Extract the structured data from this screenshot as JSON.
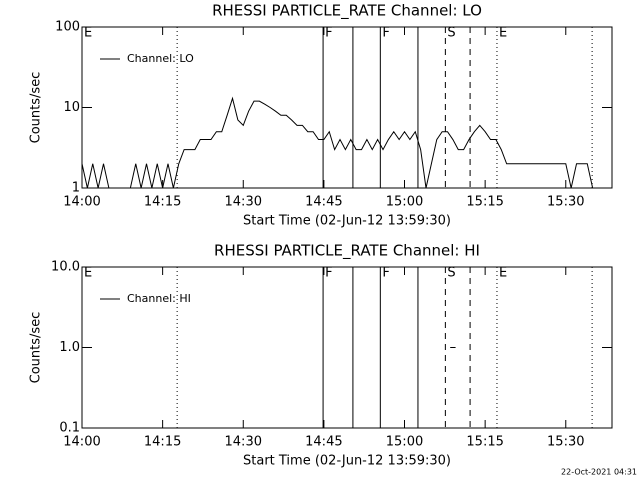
{
  "chart_data": [
    {
      "type": "line",
      "title": "RHESSI PARTICLE_RATE Channel: LO",
      "xlabel": "Start Time (02-Jun-12 13:59:30)",
      "ylabel": "Counts/sec",
      "x": [
        0,
        1,
        2,
        3,
        4,
        5,
        6,
        7,
        8,
        9,
        10,
        11,
        12,
        13,
        14,
        15,
        16,
        17,
        18,
        19,
        20,
        21,
        22,
        23,
        24,
        25,
        26,
        27,
        28,
        29,
        30,
        31,
        32,
        33,
        34,
        35,
        36,
        37,
        38,
        39,
        40,
        41,
        42,
        43,
        44,
        45,
        46,
        47,
        48,
        49,
        50,
        51,
        52,
        53,
        54,
        55,
        56,
        57,
        58,
        59,
        60,
        61,
        62,
        63,
        64,
        65,
        66,
        67,
        68,
        69,
        70,
        71,
        72,
        73,
        74,
        75,
        76,
        77,
        78,
        79,
        80,
        81,
        82,
        83,
        84,
        85,
        86,
        87,
        88,
        89,
        90,
        91,
        92,
        93,
        94,
        95
      ],
      "series": [
        {
          "name": "Channel: LO",
          "color": "#000000",
          "values": [
            2,
            1,
            2,
            1,
            2,
            1,
            1,
            1,
            1,
            1,
            2,
            1,
            2,
            1,
            2,
            1,
            2,
            1,
            2,
            3,
            3,
            3,
            4,
            4,
            4,
            5,
            5,
            8,
            13,
            7,
            6,
            9,
            12,
            12,
            11,
            10,
            9,
            8,
            8,
            7,
            6,
            6,
            5,
            5,
            4,
            4,
            5,
            3,
            4,
            3,
            4,
            3,
            3,
            4,
            3,
            4,
            3,
            4,
            5,
            4,
            5,
            4,
            5,
            3,
            1,
            2,
            4,
            5,
            5,
            4,
            3,
            3,
            4,
            5,
            6,
            5,
            4,
            4,
            3,
            2,
            2,
            2,
            2,
            2,
            2,
            2,
            2,
            2,
            2,
            2,
            2,
            1,
            2,
            2,
            2,
            1
          ]
        }
      ],
      "xlim": [
        0,
        98.6
      ],
      "xticks": [
        {
          "value": 0,
          "label": "14:00"
        },
        {
          "value": 15,
          "label": "14:15"
        },
        {
          "value": 30,
          "label": "14:30"
        },
        {
          "value": 45,
          "label": "14:45"
        },
        {
          "value": 60,
          "label": "15:00"
        },
        {
          "value": 75,
          "label": "15:15"
        },
        {
          "value": 90,
          "label": "15:30"
        }
      ],
      "ylim": [
        1,
        100
      ],
      "yticks": [
        1,
        10,
        100
      ],
      "log_y": true,
      "legend": "upper left",
      "vlines": [
        {
          "x": 17.7,
          "style": "dotted"
        },
        {
          "x": 44.85,
          "style": "solid"
        },
        {
          "x": 50.4,
          "style": "solid"
        },
        {
          "x": 55.5,
          "style": "solid"
        },
        {
          "x": 62.5,
          "style": "solid"
        },
        {
          "x": 67.6,
          "style": "dashed"
        },
        {
          "x": 72.2,
          "style": "dashed"
        },
        {
          "x": 77.2,
          "style": "dotted"
        },
        {
          "x": 94.9,
          "style": "dotted"
        }
      ],
      "flags": [
        {
          "x": 0,
          "label": "E"
        },
        {
          "x": 44.85,
          "label": "F"
        },
        {
          "x": 55.5,
          "label": "F"
        },
        {
          "x": 67.6,
          "label": "S"
        },
        {
          "x": 77.2,
          "label": "E"
        }
      ]
    },
    {
      "type": "line",
      "title": "RHESSI PARTICLE_RATE Channel: HI",
      "xlabel": "Start Time (02-Jun-12 13:59:30)",
      "ylabel": "Counts/sec",
      "x": [
        68.5,
        69.5
      ],
      "series": [
        {
          "name": "Channel: HI",
          "color": "#000000",
          "values": [
            1,
            1
          ]
        }
      ],
      "xlim": [
        0,
        98.6
      ],
      "xticks": [
        {
          "value": 0,
          "label": "14:00"
        },
        {
          "value": 15,
          "label": "14:15"
        },
        {
          "value": 30,
          "label": "14:30"
        },
        {
          "value": 45,
          "label": "14:45"
        },
        {
          "value": 60,
          "label": "15:00"
        },
        {
          "value": 75,
          "label": "15:15"
        },
        {
          "value": 90,
          "label": "15:30"
        }
      ],
      "ylim": [
        0.1,
        10
      ],
      "yticks": [
        0.1,
        {
          "value": 1,
          "label": "1.0"
        },
        {
          "value": 10,
          "label": "10.0"
        }
      ],
      "log_y": true,
      "legend": "upper left",
      "vlines": [
        {
          "x": 17.7,
          "style": "dotted"
        },
        {
          "x": 44.85,
          "style": "solid"
        },
        {
          "x": 50.4,
          "style": "solid"
        },
        {
          "x": 55.5,
          "style": "solid"
        },
        {
          "x": 62.5,
          "style": "solid"
        },
        {
          "x": 67.6,
          "style": "dashed"
        },
        {
          "x": 72.2,
          "style": "dashed"
        },
        {
          "x": 77.2,
          "style": "dotted"
        },
        {
          "x": 94.9,
          "style": "dotted"
        }
      ],
      "flags": [
        {
          "x": 0,
          "label": "E"
        },
        {
          "x": 44.85,
          "label": "F"
        },
        {
          "x": 55.5,
          "label": "F"
        },
        {
          "x": 67.6,
          "label": "S"
        },
        {
          "x": 77.2,
          "label": "E"
        }
      ]
    }
  ],
  "footer": "22-Oct-2021 04:31"
}
